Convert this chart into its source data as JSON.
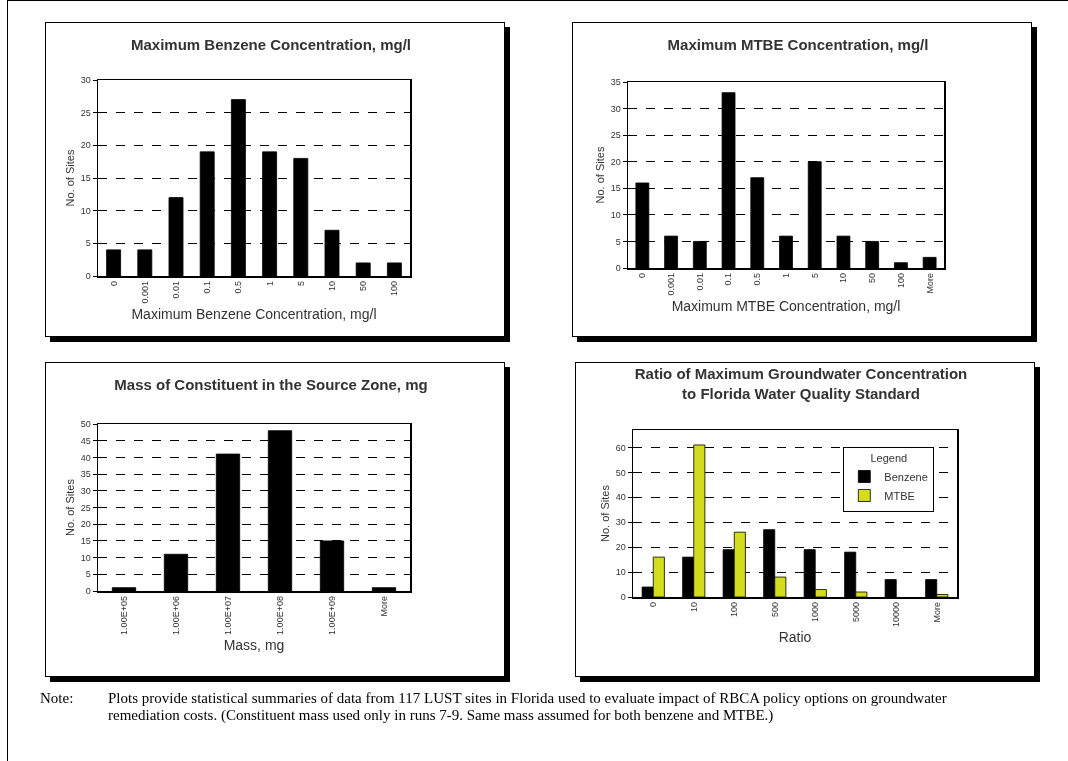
{
  "chart_data": [
    {
      "type": "bar",
      "title": "Maximum Benzene Concentration, mg/l",
      "xlabel": "Maximum Benzene Concentration, mg/l",
      "ylabel": "No. of Sites",
      "categories": [
        "0",
        "0.001",
        "0.01",
        "0.1",
        "0.5",
        "1",
        "5",
        "10",
        "50",
        "100"
      ],
      "values": [
        4,
        4,
        12,
        19,
        27,
        19,
        18,
        7,
        2,
        2
      ],
      "color": "#000000",
      "ylim": [
        0,
        30
      ],
      "yticks": [
        0,
        5,
        10,
        15,
        20,
        25,
        30
      ],
      "grid": "y"
    },
    {
      "type": "bar",
      "title": "Maximum MTBE Concentration, mg/l",
      "xlabel": "Maximum MTBE Concentration, mg/l",
      "ylabel": "No. of Sites",
      "categories": [
        "0",
        "0.001",
        "0.01",
        "0.1",
        "0.5",
        "1",
        "5",
        "10",
        "50",
        "100",
        "More"
      ],
      "values": [
        16,
        6,
        5,
        33,
        17,
        6,
        20,
        6,
        5,
        1,
        2
      ],
      "color": "#000000",
      "ylim": [
        0,
        35
      ],
      "yticks": [
        0,
        5,
        10,
        15,
        20,
        25,
        30,
        35
      ],
      "grid": "y"
    },
    {
      "type": "bar",
      "title": "Mass of Constituent in the Source Zone, mg",
      "xlabel": "Mass, mg",
      "ylabel": "No. of Sites",
      "categories": [
        "1.00E+05",
        "1.00E+06",
        "1.00E+07",
        "1.00E+08",
        "1.00E+09",
        "More"
      ],
      "values": [
        1,
        11,
        41,
        48,
        15,
        1
      ],
      "color": "#000000",
      "ylim": [
        0,
        50
      ],
      "yticks": [
        0,
        5,
        10,
        15,
        20,
        25,
        30,
        35,
        40,
        45,
        50
      ],
      "grid": "y"
    },
    {
      "type": "bar",
      "title": "Ratio of Maximum Groundwater Concentration\nto Florida Water Quality Standard",
      "xlabel": "Ratio",
      "ylabel": "No. of Sites",
      "categories": [
        "0",
        "10",
        "100",
        "500",
        "1000",
        "5000",
        "10000",
        "More"
      ],
      "series": [
        {
          "name": "Benzene",
          "color": "#000000",
          "values": [
            4,
            16,
            19,
            27,
            19,
            18,
            7,
            7
          ]
        },
        {
          "name": "MTBE",
          "color": "#d4dc1e",
          "values": [
            16,
            61,
            26,
            8,
            3,
            2,
            0,
            1
          ]
        }
      ],
      "ylim": [
        0,
        67
      ],
      "yticks": [
        0,
        10,
        20,
        30,
        40,
        50,
        60
      ],
      "grid": "y",
      "legend": "top right",
      "legend_title": "Legend",
      "annotations": [
        "Note:\tPlots provide statistical summaries of data from 117 LUST sites in Florida used to evaluate impact of RBCA policy options on groundwater remediation costs.  (Constituent mass used only in runs 7-9.  Same mass assumed for both benzene and MTBE.)"
      ]
    }
  ]
}
